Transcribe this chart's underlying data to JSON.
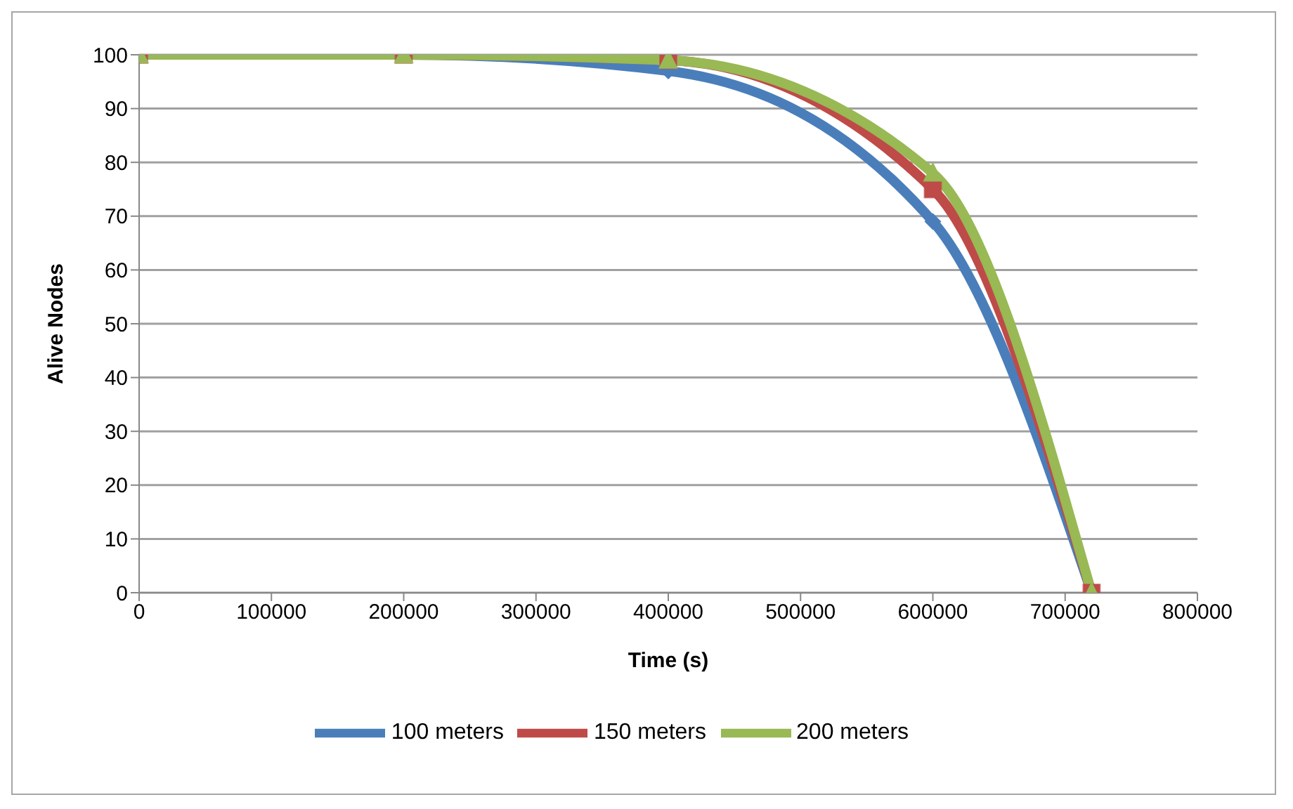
{
  "chart_data": {
    "type": "line",
    "xlabel": "Time (s)",
    "ylabel": "Alive Nodes",
    "x": [
      0,
      200000,
      400000,
      600000,
      720000
    ],
    "series": [
      {
        "name": "100 meters",
        "color": "#4a7ebb",
        "marker": "diamond",
        "values": [
          100,
          100,
          97,
          69,
          0
        ]
      },
      {
        "name": "150 meters",
        "color": "#be4b48",
        "marker": "square",
        "values": [
          100,
          100,
          99,
          75,
          0
        ]
      },
      {
        "name": "200 meters",
        "color": "#98b954",
        "marker": "triangle",
        "values": [
          100,
          100,
          99,
          78,
          0
        ]
      }
    ],
    "xlim": [
      0,
      800000
    ],
    "xticks": [
      0,
      100000,
      200000,
      300000,
      400000,
      500000,
      600000,
      700000,
      800000
    ],
    "ylim": [
      0,
      100
    ],
    "yticks": [
      0,
      10,
      20,
      30,
      40,
      50,
      60,
      70,
      80,
      90,
      100
    ],
    "grid": "y",
    "legend": "bottom"
  }
}
